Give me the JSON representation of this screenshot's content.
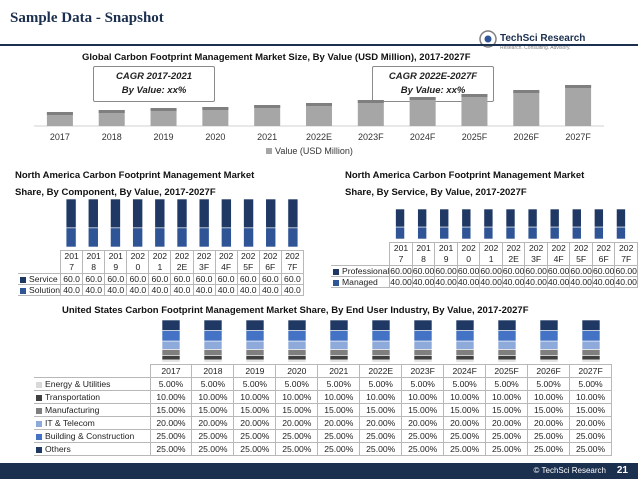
{
  "page": {
    "title": "Sample Data - Snapshot",
    "page_number": "21",
    "footer": "© TechSci Research"
  },
  "logo": {
    "name": "TechSci Research",
    "tagline": "Research. Consulting. Advisory."
  },
  "colors": {
    "navy": "#1b2f4e",
    "gray_bar": "#a6a6a6",
    "bar_blue": "#2f5597",
    "bar_dark": "#1f3864",
    "seg_others": "#1f3864",
    "seg_building": "#4472c4",
    "seg_it": "#8eaadb",
    "seg_manufacturing": "#7f7f7f",
    "seg_transportation": "#404040",
    "seg_energy": "#d9d9d9"
  },
  "cagr_boxes": [
    {
      "label": "CAGR 2017-2021",
      "value": "By Value: xx%"
    },
    {
      "label": "CAGR 2022E-2027F",
      "value": "By Value: xx%"
    }
  ],
  "chart_data": [
    {
      "id": "global",
      "type": "bar",
      "title": "Global Carbon Footprint Management Market Size, By Value (USD Million), 2017-2027F",
      "categories": [
        "2017",
        "2018",
        "2019",
        "2020",
        "2021",
        "2022E",
        "2023F",
        "2024F",
        "2025F",
        "2026F",
        "2027F"
      ],
      "series": [
        {
          "name": "Value (USD Million)",
          "values": [
            14,
            16,
            18,
            19,
            21,
            23,
            26,
            29,
            32,
            36,
            41
          ]
        }
      ],
      "ylim": [
        0,
        50
      ],
      "legend": "bottom",
      "grid": false
    },
    {
      "id": "component",
      "type": "bar",
      "stacked": true,
      "title_lines": [
        "North America Carbon Footprint Management Market",
        "Share, By Component, By Value, 2017-2027F"
      ],
      "categories": [
        "2017",
        "2018",
        "2019",
        "2020",
        "2021",
        "2022E",
        "2023F",
        "2024F",
        "2025F",
        "2026F",
        "2027F"
      ],
      "series": [
        {
          "name": "Solution",
          "values": [
            40,
            40,
            40,
            40,
            40,
            40,
            40,
            40,
            40,
            40,
            40
          ],
          "labels": [
            "40.0",
            "40.0",
            "40.0",
            "40.0",
            "40.0",
            "40.0",
            "40.0",
            "40.0",
            "40.0",
            "40.0",
            "40.0"
          ]
        },
        {
          "name": "Service",
          "values": [
            60,
            60,
            60,
            60,
            60,
            60,
            60,
            60,
            60,
            60,
            60
          ],
          "labels": [
            "60.0",
            "60.0",
            "60.0",
            "60.0",
            "60.0",
            "60.0",
            "60.0",
            "60.0",
            "60.0",
            "60.0",
            "60.0"
          ]
        }
      ],
      "ylim": [
        0,
        100
      ],
      "legend": "table"
    },
    {
      "id": "service",
      "type": "bar",
      "stacked": true,
      "title_lines": [
        "North America Carbon Footprint Management Market",
        "Share, By Service, By Value, 2017-2027F"
      ],
      "categories": [
        "2017",
        "2018",
        "2019",
        "2020",
        "2021",
        "2022E",
        "2023F",
        "2024F",
        "2025F",
        "2026F",
        "2027F"
      ],
      "series": [
        {
          "name": "Managed",
          "values": [
            40,
            40,
            40,
            40,
            40,
            40,
            40,
            40,
            40,
            40,
            40
          ],
          "labels": [
            "40.00",
            "40.00",
            "40.00",
            "40.00",
            "40.00",
            "40.00",
            "40.00",
            "40.00",
            "40.00",
            "40.00",
            "40.00"
          ]
        },
        {
          "name": "Professional",
          "values": [
            60,
            60,
            60,
            60,
            60,
            60,
            60,
            60,
            60,
            60,
            60
          ],
          "labels": [
            "60.00",
            "60.00",
            "60.00",
            "60.00",
            "60.00",
            "60.00",
            "60.00",
            "60.00",
            "60.00",
            "60.00",
            "60.00"
          ]
        }
      ],
      "ylim": [
        0,
        100
      ],
      "legend": "table"
    },
    {
      "id": "enduser",
      "type": "bar",
      "stacked": true,
      "title": "United States Carbon Footprint Management Market Share, By End User Industry, By Value, 2017-2027F",
      "categories": [
        "2017",
        "2018",
        "2019",
        "2020",
        "2021",
        "2022E",
        "2023F",
        "2024F",
        "2025F",
        "2026F",
        "2027F"
      ],
      "series": [
        {
          "name": "Energy & Utilities",
          "values": [
            5,
            5,
            5,
            5,
            5,
            5,
            5,
            5,
            5,
            5,
            5
          ],
          "labels": [
            "5.00%",
            "5.00%",
            "5.00%",
            "5.00%",
            "5.00%",
            "5.00%",
            "5.00%",
            "5.00%",
            "5.00%",
            "5.00%",
            "5.00%"
          ]
        },
        {
          "name": "Transportation",
          "values": [
            10,
            10,
            10,
            10,
            10,
            10,
            10,
            10,
            10,
            10,
            10
          ],
          "labels": [
            "10.00%",
            "10.00%",
            "10.00%",
            "10.00%",
            "10.00%",
            "10.00%",
            "10.00%",
            "10.00%",
            "10.00%",
            "10.00%",
            "10.00%"
          ]
        },
        {
          "name": "Manufacturing",
          "values": [
            15,
            15,
            15,
            15,
            15,
            15,
            15,
            15,
            15,
            15,
            15
          ],
          "labels": [
            "15.00%",
            "15.00%",
            "15.00%",
            "15.00%",
            "15.00%",
            "15.00%",
            "15.00%",
            "15.00%",
            "15.00%",
            "15.00%",
            "15.00%"
          ]
        },
        {
          "name": "IT & Telecom",
          "values": [
            20,
            20,
            20,
            20,
            20,
            20,
            20,
            20,
            20,
            20,
            20
          ],
          "labels": [
            "20.00%",
            "20.00%",
            "20.00%",
            "20.00%",
            "20.00%",
            "20.00%",
            "20.00%",
            "20.00%",
            "20.00%",
            "20.00%",
            "20.00%"
          ]
        },
        {
          "name": "Building & Construction",
          "values": [
            25,
            25,
            25,
            25,
            25,
            25,
            25,
            25,
            25,
            25,
            25
          ],
          "labels": [
            "25.00%",
            "25.00%",
            "25.00%",
            "25.00%",
            "25.00%",
            "25.00%",
            "25.00%",
            "25.00%",
            "25.00%",
            "25.00%",
            "25.00%"
          ]
        },
        {
          "name": "Others",
          "values": [
            25,
            25,
            25,
            25,
            25,
            25,
            25,
            25,
            25,
            25,
            25
          ],
          "labels": [
            "25.00%",
            "25.00%",
            "25.00%",
            "25.00%",
            "25.00%",
            "25.00%",
            "25.00%",
            "25.00%",
            "25.00%",
            "25.00%",
            "25.00%"
          ]
        }
      ],
      "ylim": [
        0,
        100
      ],
      "legend": "table"
    }
  ]
}
